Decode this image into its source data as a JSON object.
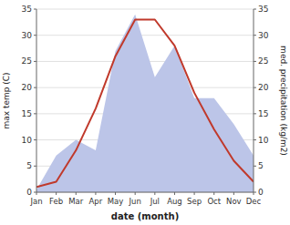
{
  "chart_data": {
    "type": "line",
    "categories": [
      "Jan",
      "Feb",
      "Mar",
      "Apr",
      "May",
      "Jun",
      "Jul",
      "Aug",
      "Sep",
      "Oct",
      "Nov",
      "Dec"
    ],
    "series": [
      {
        "type": "area",
        "axis": "y2",
        "color": "#bcc5e8",
        "values": [
          0.5,
          7,
          10,
          8,
          27,
          34,
          22,
          28,
          18,
          18,
          13,
          7
        ]
      },
      {
        "type": "line",
        "color": "#c0392b",
        "values": [
          1,
          2,
          8,
          16,
          26,
          33,
          33,
          28,
          19,
          12,
          6,
          2
        ]
      }
    ],
    "xlabel": "date (month)",
    "ylabel": "max temp (C)",
    "y2label": "med. precipitation (kg/m2)",
    "ylim": [
      0,
      35
    ],
    "yticks": [
      0,
      5,
      10,
      15,
      20,
      25,
      30,
      35
    ],
    "y2lim": [
      0,
      35
    ],
    "y2ticks": [
      0,
      5,
      10,
      15,
      20,
      25,
      30,
      35
    ],
    "grid": true
  }
}
